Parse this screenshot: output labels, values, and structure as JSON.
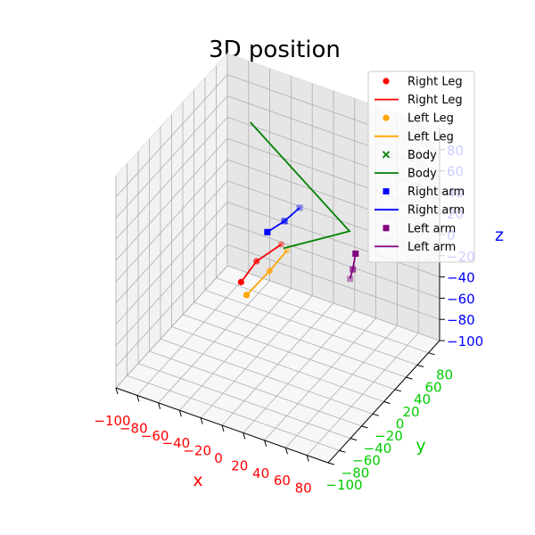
{
  "chart_data": {
    "type": "scatter3d",
    "title": "3D position",
    "xlabel": "x",
    "ylabel": "y",
    "zlabel": "z",
    "xlim": [
      -100,
      100
    ],
    "ylim": [
      -100,
      100
    ],
    "zlim": [
      -100,
      100
    ],
    "x_ticks": [
      "−100",
      "−80",
      "−60",
      "−40",
      "−20",
      "0",
      "20",
      "40",
      "60",
      "80"
    ],
    "y_ticks": [
      "−100",
      "−80",
      "−60",
      "−40",
      "−20",
      "0",
      "20",
      "40",
      "60",
      "80"
    ],
    "z_ticks": [
      "−100",
      "−80",
      "−60",
      "−40",
      "−20",
      "0",
      "20",
      "40",
      "60",
      "80"
    ],
    "grid": true,
    "legend_position": "top-right",
    "colors": {
      "x_axis": "#ff0000",
      "y_axis": "#00ff00",
      "z_axis": "#0000ff",
      "pane_left": "#f2f2f2",
      "pane_back": "#e6e6e6",
      "pane_floor": "#f7f7f7",
      "grid": "#b0b0b0"
    },
    "legend": [
      {
        "label": "Right Leg",
        "kind": "marker",
        "marker": "circle",
        "color": "#ff0000"
      },
      {
        "label": "Right Leg",
        "kind": "line",
        "color": "#ff0000"
      },
      {
        "label": "Left Leg",
        "kind": "marker",
        "marker": "circle",
        "color": "#ffa500"
      },
      {
        "label": "Left Leg",
        "kind": "line",
        "color": "#ffa500"
      },
      {
        "label": "Body",
        "kind": "marker",
        "marker": "x",
        "color": "#008000"
      },
      {
        "label": "Body",
        "kind": "line",
        "color": "#008000"
      },
      {
        "label": "Right arm",
        "kind": "marker",
        "marker": "square",
        "color": "#0000ff"
      },
      {
        "label": "Right arm",
        "kind": "line",
        "color": "#0000ff"
      },
      {
        "label": "Left arm",
        "kind": "marker",
        "marker": "square",
        "color": "#800080"
      },
      {
        "label": "Left arm",
        "kind": "line",
        "color": "#800080"
      }
    ],
    "series": [
      {
        "name": "Right Leg",
        "color": "#ff0000",
        "marker": "circle",
        "show_markers": true,
        "points": [
          [
            -32,
            -5,
            -31
          ],
          [
            -20,
            0,
            -10
          ],
          [
            -3,
            12,
            5
          ]
        ]
      },
      {
        "name": "Left Leg",
        "color": "#ffa500",
        "marker": "circle",
        "show_markers": true,
        "points": [
          [
            -21,
            -16,
            -33
          ],
          [
            -5,
            -5,
            -11
          ],
          [
            5,
            7,
            5
          ]
        ]
      },
      {
        "name": "Body",
        "color": "#008000",
        "marker": "x",
        "show_markers": false,
        "points": [
          [
            1,
            8,
            5
          ],
          [
            44,
            45,
            15
          ],
          [
            -39,
            25,
            100
          ]
        ]
      },
      {
        "name": "Right arm",
        "color": "#0000ff",
        "marker": "square",
        "show_markers": true,
        "points": [
          [
            -14,
            8,
            15
          ],
          [
            -2,
            16,
            25
          ],
          [
            7,
            26,
            35
          ]
        ]
      },
      {
        "name": "Left arm",
        "color": "#800080",
        "marker": "square",
        "show_markers": true,
        "points": [
          [
            56,
            33,
            5
          ],
          [
            56,
            28,
            -7
          ],
          [
            56,
            23,
            -13
          ]
        ]
      }
    ]
  }
}
